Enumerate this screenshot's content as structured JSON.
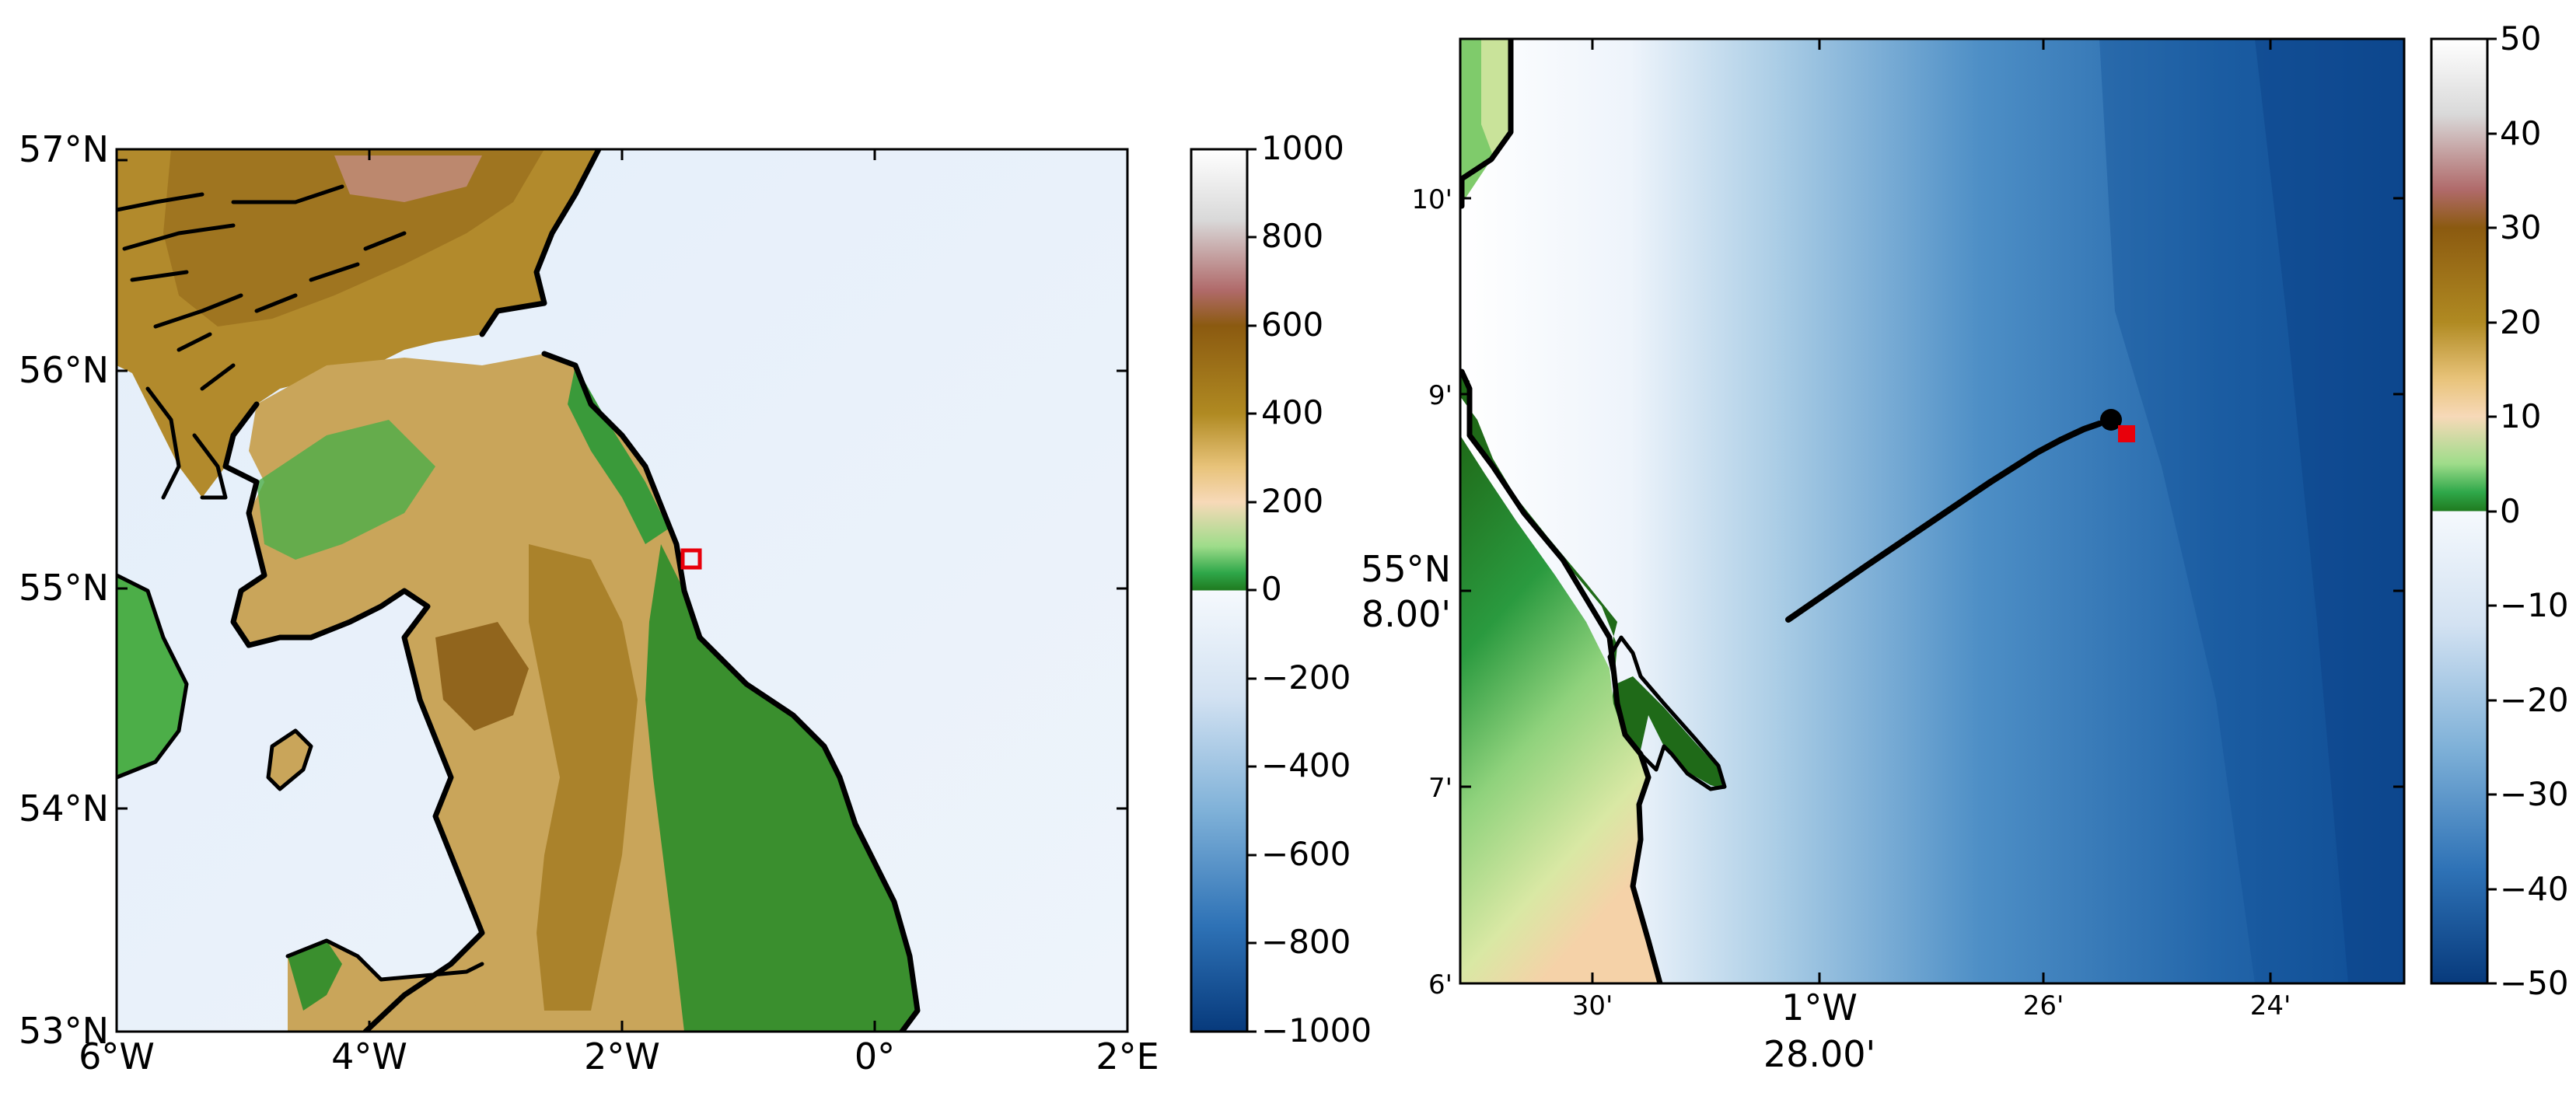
{
  "left_map": {
    "lat_labels": [
      "57°N",
      "56°N",
      "55°N",
      "54°N",
      "53°N"
    ],
    "lon_labels": [
      "6°W",
      "4°W",
      "2°W",
      "0°",
      "2°E"
    ]
  },
  "left_colorbar": {
    "ticks": [
      "1000",
      "800",
      "600",
      "400",
      "200",
      "0",
      "−200",
      "−400",
      "−600",
      "−800",
      "−1000"
    ]
  },
  "right_map": {
    "lat_labels": [
      "10'",
      "9'",
      "7'",
      "6'"
    ],
    "lat_major_deg": "55°N",
    "lat_major_min": "8.00'",
    "lon_labels": [
      "30'",
      "26'",
      "24'"
    ],
    "lon_major_deg": "1°W",
    "lon_major_min": "28.00'"
  },
  "right_colorbar": {
    "ticks": [
      "50",
      "40",
      "30",
      "20",
      "10",
      "0",
      "−10",
      "−20",
      "−30",
      "−40",
      "−50"
    ]
  },
  "colors": {
    "sea_light": "#e8f1fb",
    "land_green": "#3a8f2e",
    "land_tan": "#c9a55a",
    "land_brown": "#9a6f1e",
    "marker_red": "#e8000b",
    "deep_blue": "#0d4a93"
  }
}
